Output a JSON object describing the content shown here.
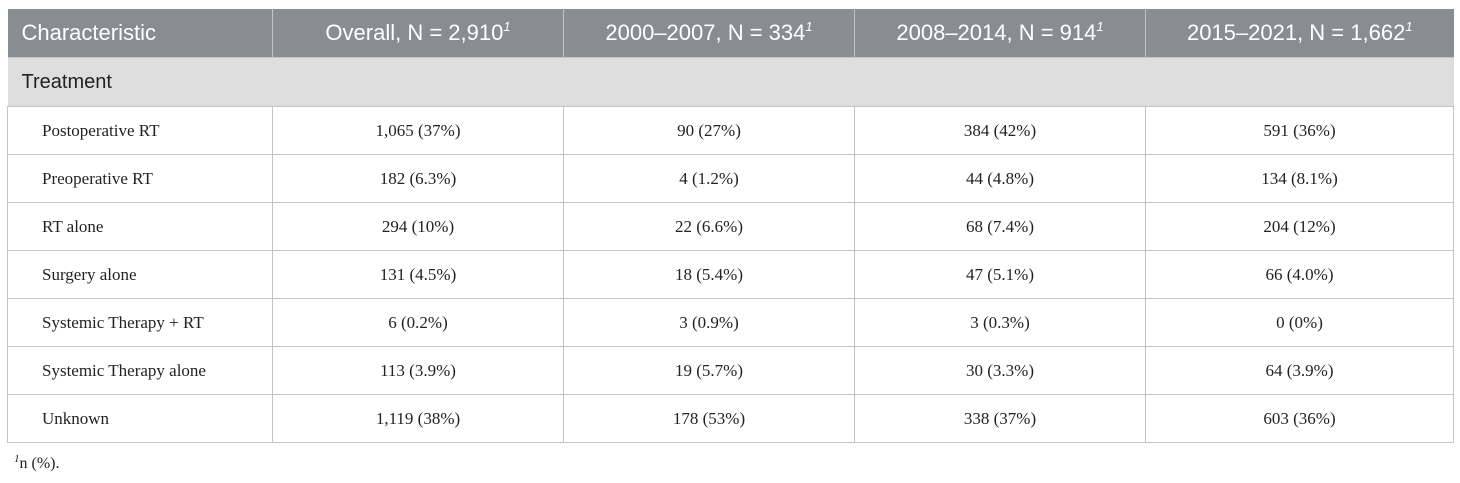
{
  "table": {
    "header": {
      "col1": "Characteristic",
      "col2": "Overall, N = 2,910",
      "col3": "2000–2007, N = 334",
      "col4": "2008–2014, N = 914",
      "col5": "2015–2021, N = 1,662",
      "footnote_marker": "1"
    },
    "section": "Treatment",
    "rows": [
      {
        "label": "Postoperative RT",
        "overall": "1,065 (37%)",
        "p1": "90 (27%)",
        "p2": "384 (42%)",
        "p3": "591 (36%)"
      },
      {
        "label": "Preoperative RT",
        "overall": "182 (6.3%)",
        "p1": "4 (1.2%)",
        "p2": "44 (4.8%)",
        "p3": "134 (8.1%)"
      },
      {
        "label": "RT alone",
        "overall": "294 (10%)",
        "p1": "22 (6.6%)",
        "p2": "68 (7.4%)",
        "p3": "204 (12%)"
      },
      {
        "label": "Surgery alone",
        "overall": "131 (4.5%)",
        "p1": "18 (5.4%)",
        "p2": "47 (5.1%)",
        "p3": "66 (4.0%)"
      },
      {
        "label": "Systemic Therapy + RT",
        "overall": "6 (0.2%)",
        "p1": "3 (0.9%)",
        "p2": "3 (0.3%)",
        "p3": "0 (0%)"
      },
      {
        "label": "Systemic Therapy alone",
        "overall": "113 (3.9%)",
        "p1": "19 (5.7%)",
        "p2": "30 (3.3%)",
        "p3": "64 (3.9%)"
      },
      {
        "label": "Unknown",
        "overall": "1,119 (38%)",
        "p1": "178 (53%)",
        "p2": "338 (37%)",
        "p3": "603 (36%)"
      }
    ]
  },
  "footnote": {
    "marker": "1",
    "text": "n (%)."
  },
  "colors": {
    "header_bg": "#8a8d8f",
    "section_bg": "#dedede",
    "border": "#c4c4c4"
  }
}
